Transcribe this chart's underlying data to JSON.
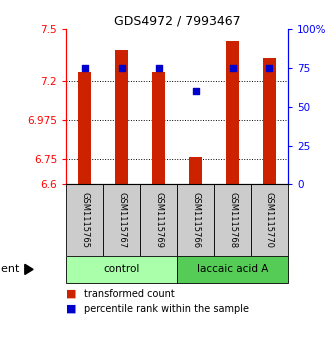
{
  "title": "GDS4972 / 7993467",
  "samples": [
    "GSM1115765",
    "GSM1115767",
    "GSM1115769",
    "GSM1115766",
    "GSM1115768",
    "GSM1115770"
  ],
  "bar_values": [
    7.25,
    7.38,
    7.25,
    6.76,
    7.43,
    7.33
  ],
  "percentile_values": [
    75,
    75,
    75,
    60,
    75,
    75
  ],
  "ylim_left": [
    6.6,
    7.5
  ],
  "ylim_right": [
    0,
    100
  ],
  "yticks_left": [
    6.6,
    6.75,
    6.975,
    7.2,
    7.5
  ],
  "yticks_right": [
    0,
    25,
    50,
    75,
    100
  ],
  "ytick_labels_left": [
    "6.6",
    "6.75",
    "6.975",
    "7.2",
    "7.5"
  ],
  "ytick_labels_right": [
    "0",
    "25",
    "50",
    "75",
    "100%"
  ],
  "bar_color": "#cc2200",
  "dot_color": "#0000cc",
  "gridline_y": [
    7.2,
    6.975,
    6.75
  ],
  "groups": [
    {
      "label": "control",
      "indices": [
        0,
        1,
        2
      ],
      "color": "#aaffaa"
    },
    {
      "label": "laccaic acid A",
      "indices": [
        3,
        4,
        5
      ],
      "color": "#55cc55"
    }
  ],
  "agent_label": "agent",
  "legend_bar_label": "transformed count",
  "legend_dot_label": "percentile rank within the sample",
  "bar_width": 0.35,
  "bar_bottom": 6.6,
  "sample_box_color": "#cccccc",
  "spine_color_left": "#cc0000",
  "spine_color_right": "#0000cc"
}
